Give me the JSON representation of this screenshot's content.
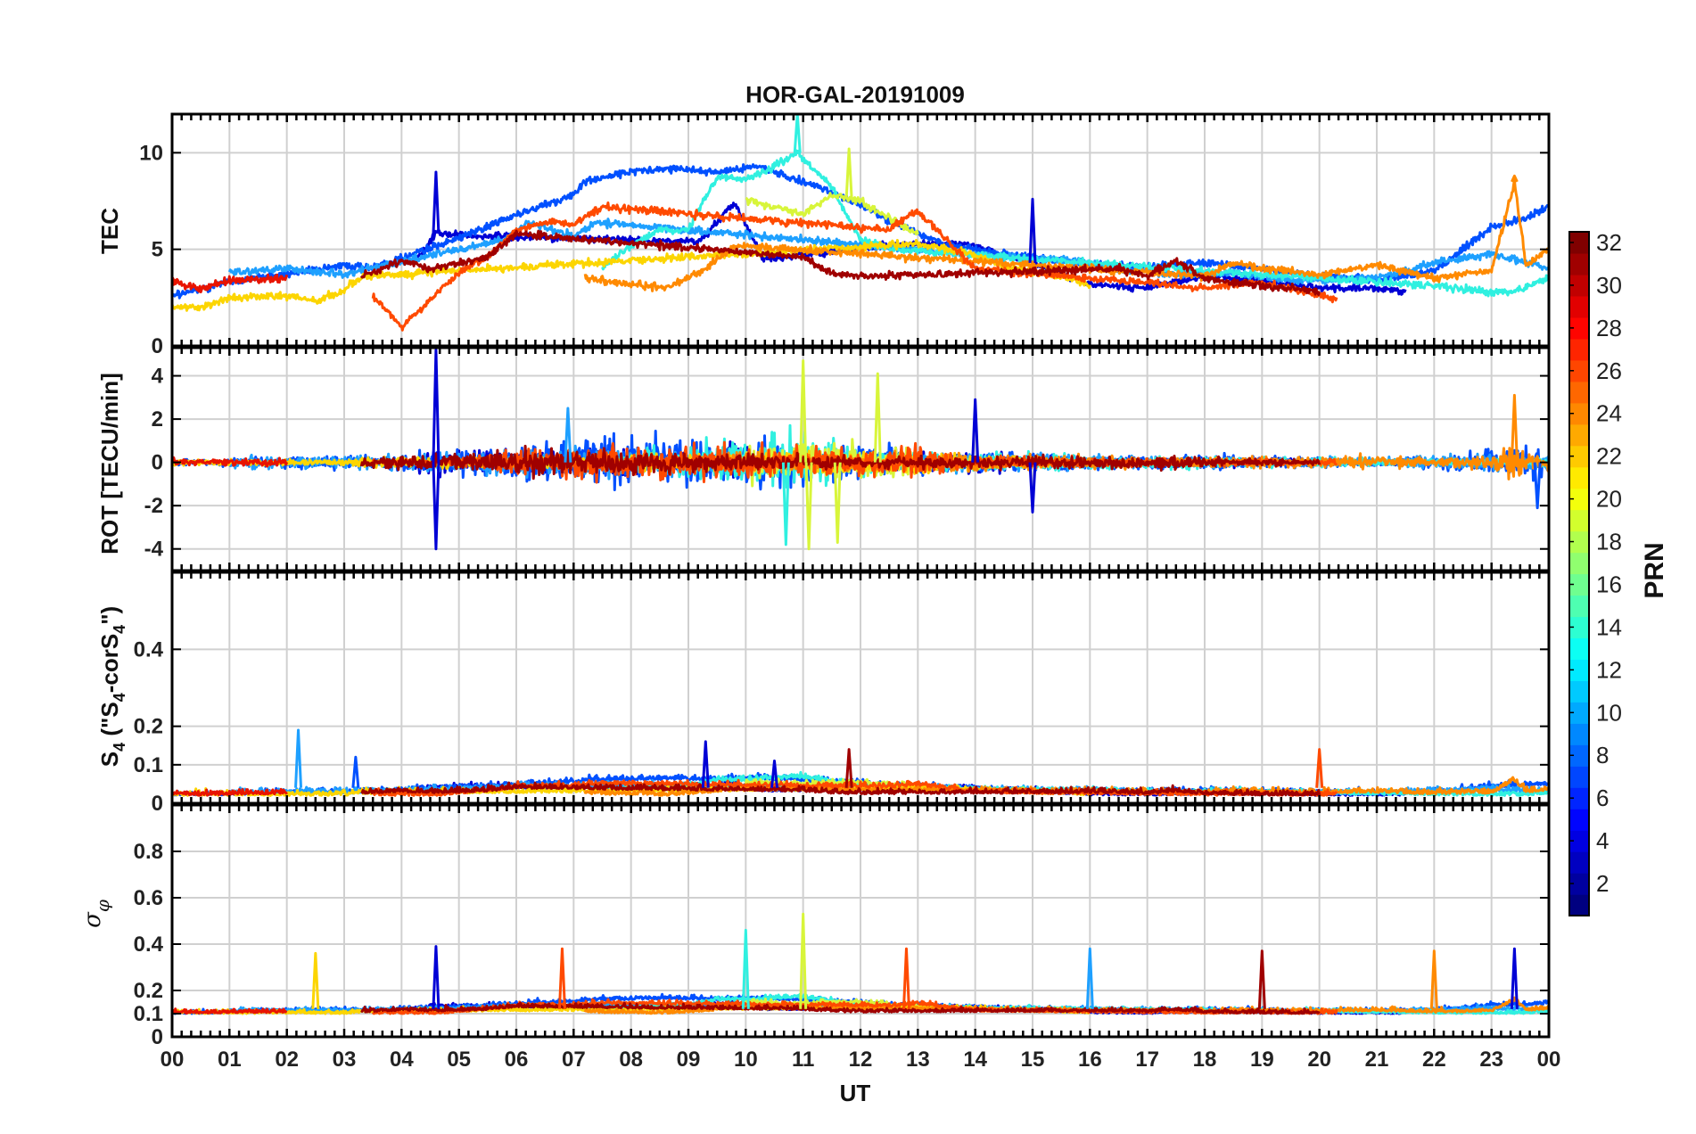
{
  "chart_data": {
    "type": "line",
    "title": "HOR-GAL-20191009",
    "xlabel": "UT",
    "x_ticks": [
      "00",
      "01",
      "02",
      "03",
      "04",
      "05",
      "06",
      "07",
      "08",
      "09",
      "10",
      "11",
      "12",
      "13",
      "14",
      "15",
      "16",
      "17",
      "18",
      "19",
      "20",
      "21",
      "22",
      "23",
      "00"
    ],
    "xlim": [
      0,
      24
    ],
    "panels": [
      {
        "id": "tec",
        "ylabel": "TEC",
        "ylim": [
          0,
          12
        ],
        "yticks": [
          0,
          5,
          10
        ],
        "ytick_labels": [
          "0",
          "5",
          "10"
        ],
        "grid": true
      },
      {
        "id": "rot",
        "ylabel": "ROT [TECU/min]",
        "ylim": [
          -5,
          5.3
        ],
        "yticks": [
          -4,
          -2,
          0,
          2,
          4
        ],
        "ytick_labels": [
          "-4",
          "-2",
          "0",
          "2",
          "4"
        ],
        "grid": true
      },
      {
        "id": "s4",
        "ylabel": "S4 (\"S4-corS4\")",
        "ylabel_parts": [
          "S",
          "4",
          " (\"S",
          "4",
          "-corS",
          "4",
          "\")"
        ],
        "ylim": [
          0,
          0.6
        ],
        "yticks": [
          0,
          0.1,
          0.2,
          0.4
        ],
        "ytick_labels": [
          "0",
          "0.1",
          "0.2",
          "0.4"
        ],
        "grid": true
      },
      {
        "id": "sigma",
        "ylabel": "σφ",
        "ylabel_parts": [
          "σ",
          "φ"
        ],
        "ylim": [
          0,
          1
        ],
        "yticks": [
          0,
          0.1,
          0.2,
          0.4,
          0.6,
          0.8
        ],
        "ytick_labels": [
          "0",
          "0.1",
          "0.2",
          "0.4",
          "0.6",
          "0.8"
        ],
        "grid": true
      }
    ],
    "colorbar": {
      "label": "PRN",
      "range": [
        1,
        32
      ],
      "ticks": [
        2,
        4,
        6,
        8,
        10,
        12,
        14,
        16,
        18,
        20,
        22,
        24,
        26,
        28,
        30,
        32
      ],
      "tick_labels": [
        "2",
        "4",
        "6",
        "8",
        "10",
        "12",
        "14",
        "16",
        "18",
        "20",
        "22",
        "24",
        "26",
        "28",
        "30",
        "32"
      ],
      "colormap": "jet"
    },
    "series": [
      {
        "prn": 3,
        "color": "#0000d5",
        "start": 4.2,
        "end": 21.5,
        "tec": [
          [
            4.2,
            4.2
          ],
          [
            4.6,
            5.8
          ],
          [
            5.5,
            5.7
          ],
          [
            9.2,
            5.4
          ],
          [
            9.8,
            7.4
          ],
          [
            10.3,
            4.5
          ],
          [
            12.5,
            5.2
          ],
          [
            13.8,
            5.3
          ],
          [
            15,
            4.3
          ],
          [
            16,
            3.2
          ],
          [
            17,
            3.0
          ],
          [
            18,
            3.6
          ],
          [
            19,
            3.4
          ],
          [
            20,
            3.0
          ],
          [
            21,
            3.0
          ],
          [
            21.5,
            2.8
          ]
        ]
      },
      {
        "prn": 6,
        "color": "#0050ff",
        "start": 0.0,
        "end": 24.0,
        "tec": [
          [
            0,
            2.6
          ],
          [
            1,
            3.3
          ],
          [
            2,
            3.7
          ],
          [
            3,
            4.2
          ],
          [
            3.5,
            4.0
          ],
          [
            5,
            5.6
          ],
          [
            6,
            6.8
          ],
          [
            7,
            7.8
          ],
          [
            7.2,
            8.5
          ],
          [
            8,
            9.0
          ],
          [
            8.6,
            9.2
          ],
          [
            9.5,
            9.0
          ],
          [
            10.2,
            9.3
          ],
          [
            11.5,
            8.0
          ],
          [
            12.5,
            6.5
          ],
          [
            13.5,
            5.2
          ],
          [
            15,
            4.6
          ],
          [
            16,
            4.2
          ],
          [
            17,
            4.1
          ],
          [
            18,
            4.3
          ],
          [
            19,
            4.0
          ],
          [
            20,
            3.6
          ],
          [
            21,
            3.4
          ],
          [
            22,
            3.9
          ],
          [
            22.5,
            5.0
          ],
          [
            23,
            6.2
          ],
          [
            23.5,
            6.5
          ],
          [
            24,
            7.2
          ]
        ]
      },
      {
        "prn": 9,
        "color": "#1ea0ff",
        "start": 1.0,
        "end": 24.0,
        "tec": [
          [
            1,
            3.8
          ],
          [
            2,
            4.0
          ],
          [
            3,
            3.7
          ],
          [
            5.8,
            5.5
          ],
          [
            6.2,
            6.4
          ],
          [
            7,
            5.7
          ],
          [
            7.4,
            6.4
          ],
          [
            14.5,
            4.6
          ],
          [
            15.5,
            4.5
          ],
          [
            16.5,
            4.0
          ],
          [
            17.5,
            3.7
          ],
          [
            18.5,
            3.8
          ],
          [
            19.5,
            3.4
          ],
          [
            21,
            3.5
          ],
          [
            22,
            4.3
          ],
          [
            23,
            4.8
          ],
          [
            24,
            4.0
          ]
        ]
      },
      {
        "prn": 13,
        "color": "#30f0e0",
        "start": 7.5,
        "end": 24.0,
        "tec": [
          [
            7.5,
            4.0
          ],
          [
            8,
            5.2
          ],
          [
            8.5,
            6.0
          ],
          [
            9,
            6.0
          ],
          [
            9.5,
            8.8
          ],
          [
            10,
            8.6
          ],
          [
            10.5,
            9.3
          ],
          [
            10.9,
            10.0
          ],
          [
            11.5,
            8.2
          ],
          [
            12,
            5.5
          ],
          [
            12.5,
            5.0
          ],
          [
            22,
            3.1
          ],
          [
            23,
            2.8
          ],
          [
            23.5,
            2.9
          ],
          [
            24,
            3.6
          ]
        ]
      },
      {
        "prn": 19,
        "color": "#d8f53a",
        "start": 10.0,
        "end": 13.0,
        "tec": [
          [
            10,
            7.6
          ],
          [
            10.5,
            7.2
          ],
          [
            11,
            6.8
          ],
          [
            11.5,
            7.8
          ],
          [
            12,
            7.5
          ],
          [
            12.5,
            6.6
          ],
          [
            13,
            5.8
          ]
        ]
      },
      {
        "prn": 21,
        "color": "#fcd500",
        "start": 0.0,
        "end": 16.0,
        "tec": [
          [
            0,
            2.0
          ],
          [
            0.5,
            2.0
          ],
          [
            1,
            2.5
          ],
          [
            2,
            2.6
          ],
          [
            2.5,
            2.3
          ],
          [
            3,
            2.9
          ],
          [
            3.3,
            3.6
          ],
          [
            13,
            5.3
          ],
          [
            14,
            4.7
          ],
          [
            14.5,
            4.1
          ],
          [
            15.5,
            3.6
          ],
          [
            16,
            3.2
          ]
        ]
      },
      {
        "prn": 24,
        "color": "#ff8a00",
        "start": 7.2,
        "end": 24.0,
        "tec": [
          [
            7.2,
            3.5
          ],
          [
            8,
            3.2
          ],
          [
            8.6,
            3.0
          ],
          [
            9,
            3.5
          ],
          [
            9.3,
            4.0
          ],
          [
            9.8,
            5.2
          ],
          [
            18,
            3.6
          ],
          [
            18.5,
            4.3
          ],
          [
            19,
            4.0
          ],
          [
            20,
            3.7
          ],
          [
            21,
            4.2
          ],
          [
            22,
            3.5
          ],
          [
            23,
            3.9
          ],
          [
            23.4,
            8.5
          ],
          [
            23.6,
            4.2
          ],
          [
            24,
            5.0
          ]
        ]
      },
      {
        "prn": 26,
        "color": "#ff4a00",
        "start": 3.5,
        "end": 20.3,
        "tec": [
          [
            3.5,
            2.6
          ],
          [
            4,
            1.0
          ],
          [
            4.3,
            1.8
          ],
          [
            5,
            3.8
          ],
          [
            5.5,
            4.6
          ],
          [
            6,
            6.0
          ],
          [
            6.5,
            6.4
          ],
          [
            7,
            6.3
          ],
          [
            7.5,
            7.2
          ],
          [
            12.5,
            6.0
          ],
          [
            13,
            7.0
          ],
          [
            14,
            4.0
          ],
          [
            18,
            3.0
          ],
          [
            19,
            3.3
          ],
          [
            20,
            2.6
          ],
          [
            20.3,
            2.4
          ]
        ]
      },
      {
        "prn": 29,
        "color": "#e81400",
        "start": 0.0,
        "end": 2.0,
        "tec": [
          [
            0,
            3.4
          ],
          [
            0.5,
            2.9
          ],
          [
            1,
            3.4
          ],
          [
            2,
            3.5
          ]
        ]
      },
      {
        "prn": 31,
        "color": "#a00000",
        "start": 3.3,
        "end": 20.0,
        "tec": [
          [
            3.3,
            3.6
          ],
          [
            4,
            4.4
          ],
          [
            4.5,
            4.0
          ],
          [
            5.5,
            4.6
          ],
          [
            6,
            5.8
          ],
          [
            11,
            4.6
          ],
          [
            11.5,
            3.8
          ],
          [
            12,
            3.6
          ],
          [
            16.5,
            4.0
          ],
          [
            17,
            3.6
          ],
          [
            17.5,
            4.4
          ],
          [
            18,
            3.5
          ],
          [
            19,
            3.1
          ],
          [
            19.5,
            3.0
          ],
          [
            20,
            2.8
          ]
        ]
      }
    ],
    "spikes": {
      "tec": [
        {
          "prn": 3,
          "x": 4.6,
          "value": 9.0
        },
        {
          "prn": 13,
          "x": 10.9,
          "value": 12.0
        },
        {
          "prn": 19,
          "x": 11.8,
          "value": 10.2
        },
        {
          "prn": 3,
          "x": 15.0,
          "value": 7.6
        },
        {
          "prn": 24,
          "x": 23.4,
          "value": 8.8
        }
      ],
      "rot": [
        {
          "prn": 3,
          "x": 4.6,
          "value": 5.2
        },
        {
          "prn": 3,
          "x": 4.6,
          "value": -4.0
        },
        {
          "prn": 19,
          "x": 11.0,
          "value": 4.7
        },
        {
          "prn": 19,
          "x": 11.1,
          "value": -4.0
        },
        {
          "prn": 19,
          "x": 12.3,
          "value": 4.1
        },
        {
          "prn": 19,
          "x": 11.6,
          "value": -3.7
        },
        {
          "prn": 13,
          "x": 10.7,
          "value": -3.8
        },
        {
          "prn": 9,
          "x": 6.9,
          "value": 2.5
        },
        {
          "prn": 3,
          "x": 14.0,
          "value": 2.9
        },
        {
          "prn": 3,
          "x": 15.0,
          "value": -2.3
        },
        {
          "prn": 24,
          "x": 23.4,
          "value": 3.1
        },
        {
          "prn": 6,
          "x": 23.8,
          "value": -2.1
        }
      ],
      "s4": [
        {
          "prn": 9,
          "x": 2.2,
          "value": 0.19
        },
        {
          "prn": 6,
          "x": 3.2,
          "value": 0.12
        },
        {
          "prn": 3,
          "x": 9.3,
          "value": 0.16
        },
        {
          "prn": 3,
          "x": 10.5,
          "value": 0.11
        },
        {
          "prn": 31,
          "x": 11.8,
          "value": 0.14
        },
        {
          "prn": 26,
          "x": 20.0,
          "value": 0.14
        }
      ],
      "sigma": [
        {
          "prn": 21,
          "x": 2.5,
          "value": 0.36
        },
        {
          "prn": 3,
          "x": 4.6,
          "value": 0.39
        },
        {
          "prn": 26,
          "x": 6.8,
          "value": 0.38
        },
        {
          "prn": 13,
          "x": 10.0,
          "value": 0.46
        },
        {
          "prn": 19,
          "x": 11.0,
          "value": 0.53
        },
        {
          "prn": 26,
          "x": 12.8,
          "value": 0.38
        },
        {
          "prn": 9,
          "x": 16.0,
          "value": 0.38
        },
        {
          "prn": 31,
          "x": 19.0,
          "value": 0.37
        },
        {
          "prn": 24,
          "x": 22.0,
          "value": 0.37
        },
        {
          "prn": 3,
          "x": 23.4,
          "value": 0.38
        }
      ]
    }
  }
}
